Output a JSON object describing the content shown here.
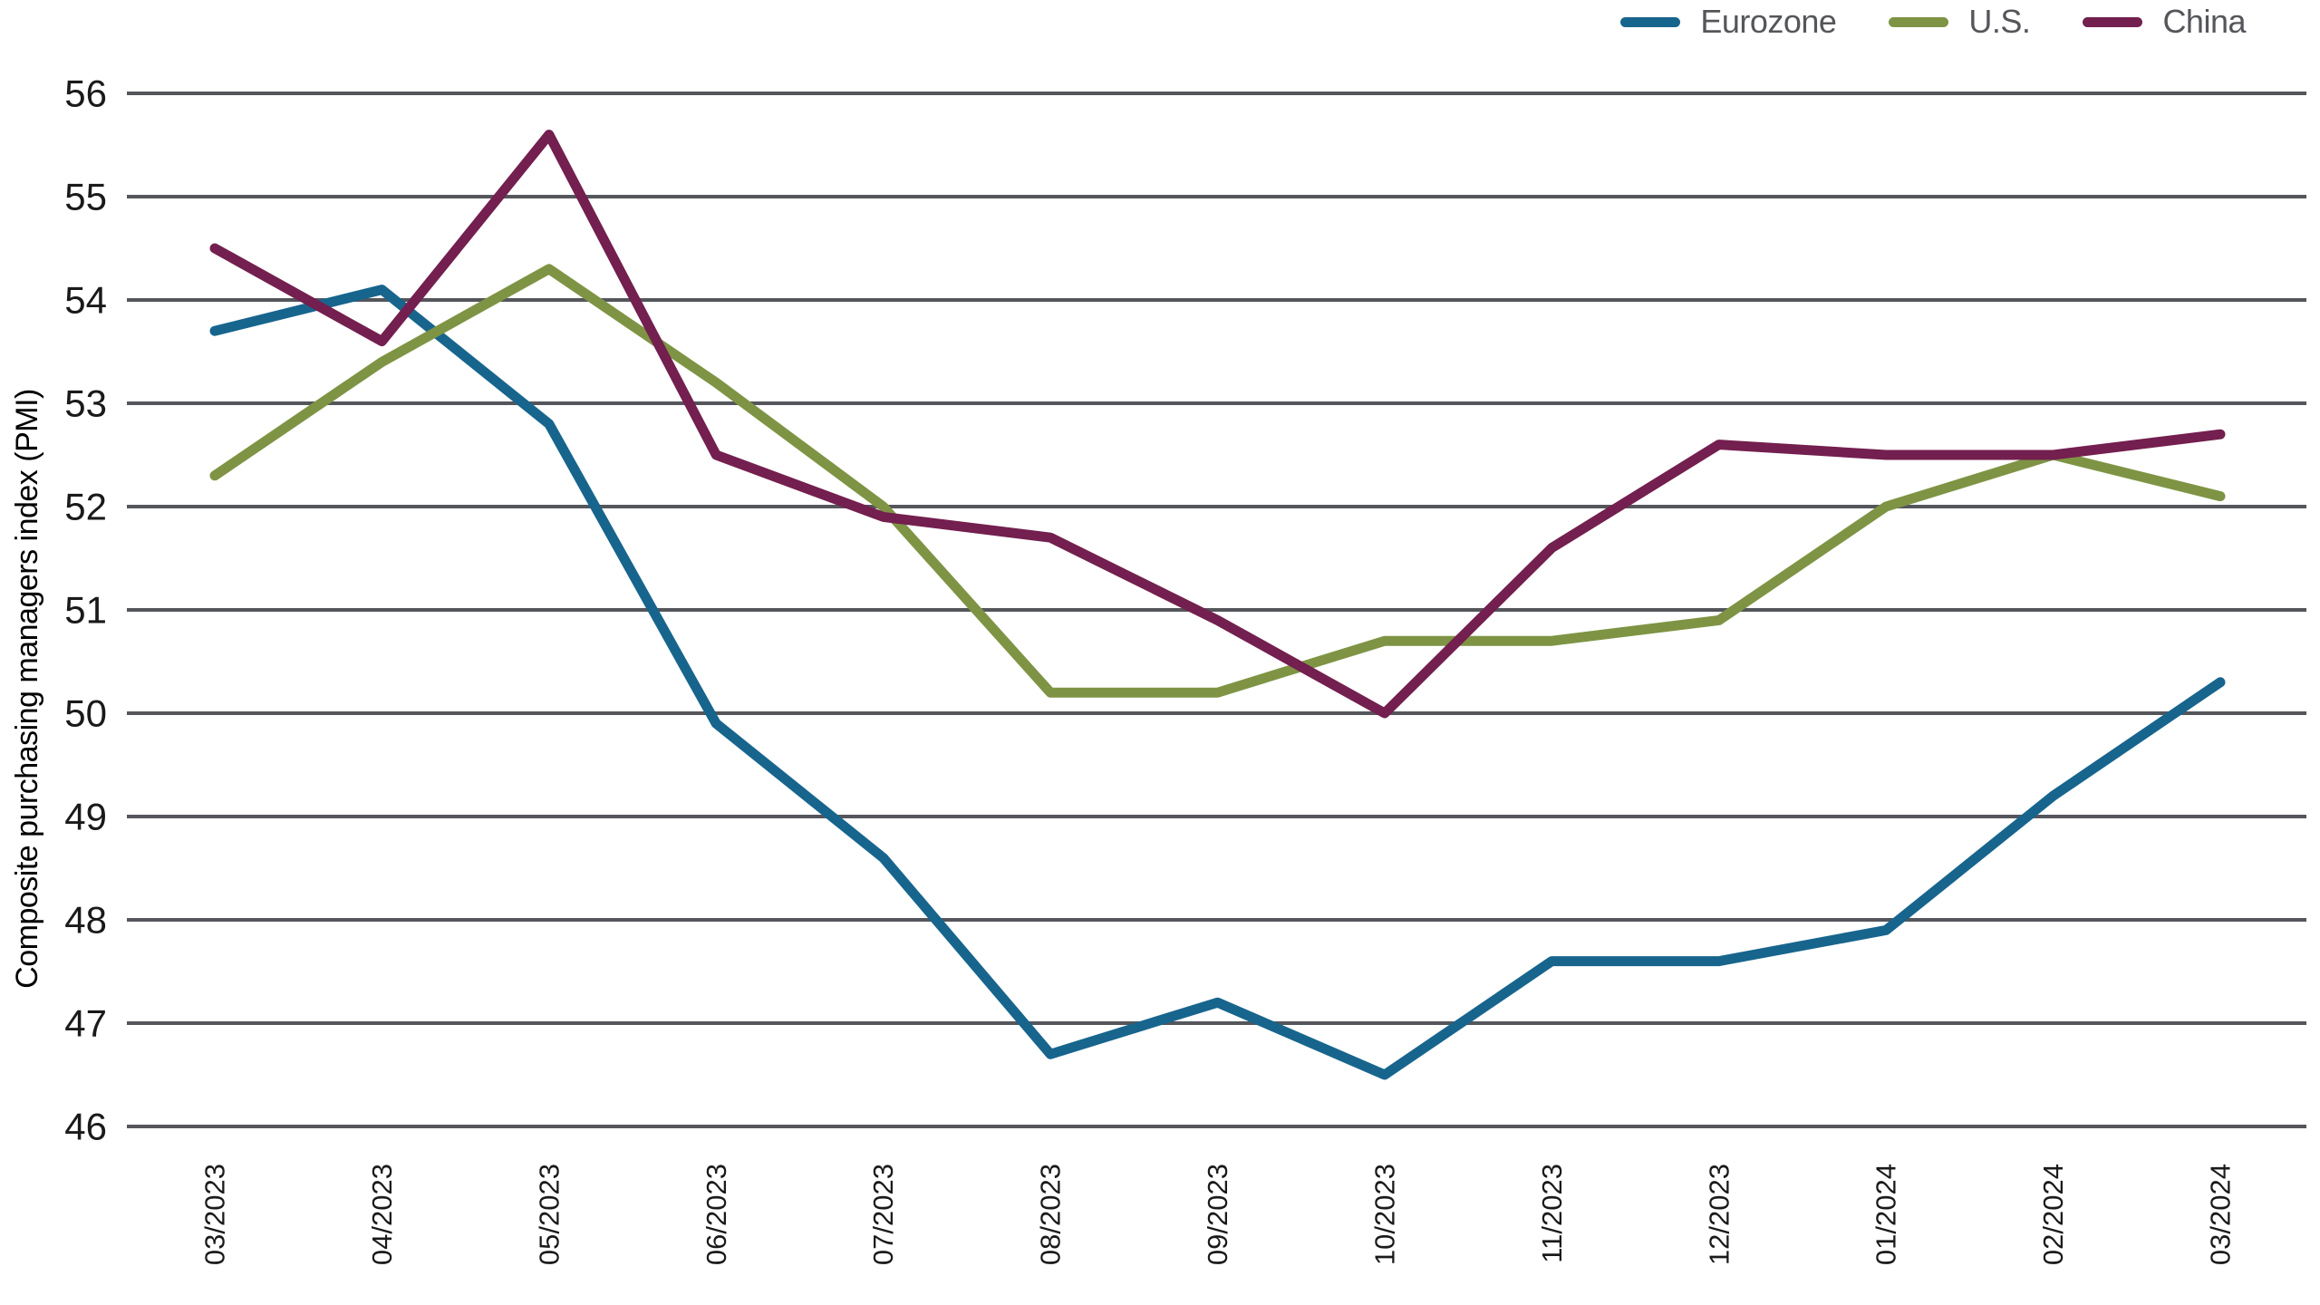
{
  "chart_data": {
    "type": "line",
    "title": "",
    "xlabel": "",
    "ylabel": "Composite purchasing managers index (PMI)",
    "ylim": [
      46,
      56
    ],
    "ytick_step": 1,
    "grid": "horizontal-only",
    "legend_position": "top-right",
    "categories": [
      "03/2023",
      "04/2023",
      "05/2023",
      "06/2023",
      "07/2023",
      "08/2023",
      "09/2023",
      "10/2023",
      "11/2023",
      "12/2023",
      "01/2024",
      "02/2024",
      "03/2024"
    ],
    "series": [
      {
        "name": "Eurozone",
        "color": "#17658D",
        "values": [
          53.7,
          54.1,
          52.8,
          49.9,
          48.6,
          46.7,
          47.2,
          46.5,
          47.6,
          47.6,
          47.9,
          49.2,
          50.3
        ]
      },
      {
        "name": "U.S.",
        "color": "#7E9444",
        "values": [
          52.3,
          53.4,
          54.3,
          53.2,
          52.0,
          50.2,
          50.2,
          50.7,
          50.7,
          50.9,
          52.0,
          52.5,
          52.1
        ]
      },
      {
        "name": "China",
        "color": "#731F4F",
        "values": [
          54.5,
          53.6,
          55.6,
          52.5,
          51.9,
          51.7,
          50.9,
          50.0,
          51.6,
          52.6,
          52.5,
          52.5,
          52.7
        ]
      }
    ]
  },
  "colors": {
    "background": "#FFFFFF",
    "gridline": "#54565B",
    "axis_tick_label": "#1A1A1A",
    "axis_title": "#000000",
    "legend_text": "#54565A"
  }
}
